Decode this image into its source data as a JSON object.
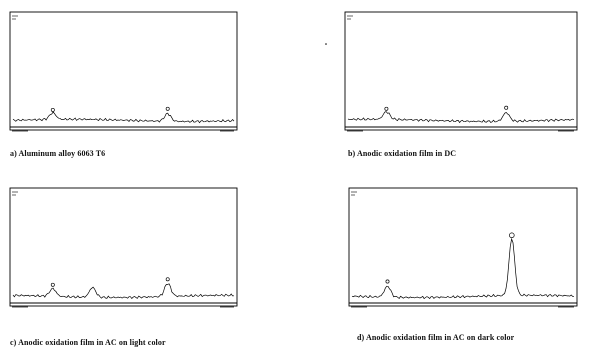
{
  "captions": {
    "a": "a) Aluminum alloy 6063 T6",
    "b": "b) Anodic oxidation film in DC",
    "c": "c) Anodic oxidation film in AC on light color",
    "d": "d) Anodic oxidation film in AC on dark color"
  },
  "chart_data": [
    {
      "type": "line",
      "caption": "a) Aluminum alloy 6063 T6",
      "peaks": [
        {
          "x": 0.18,
          "height": 0.06
        },
        {
          "x": 0.7,
          "height": 0.07
        }
      ]
    },
    {
      "type": "line",
      "caption": "b) Anodic oxidation film in DC",
      "peaks": [
        {
          "x": 0.17,
          "height": 0.07
        },
        {
          "x": 0.7,
          "height": 0.08
        }
      ]
    },
    {
      "type": "line",
      "caption": "c) Anodic oxidation film in AC on light color",
      "peaks": [
        {
          "x": 0.18,
          "height": 0.07
        },
        {
          "x": 0.36,
          "height": 0.09
        },
        {
          "x": 0.7,
          "height": 0.12
        }
      ]
    },
    {
      "type": "line",
      "caption": "d) Anodic oxidation film in AC on dark color",
      "peaks": [
        {
          "x": 0.16,
          "height": 0.1
        },
        {
          "x": 0.72,
          "height": 0.52
        }
      ]
    }
  ]
}
